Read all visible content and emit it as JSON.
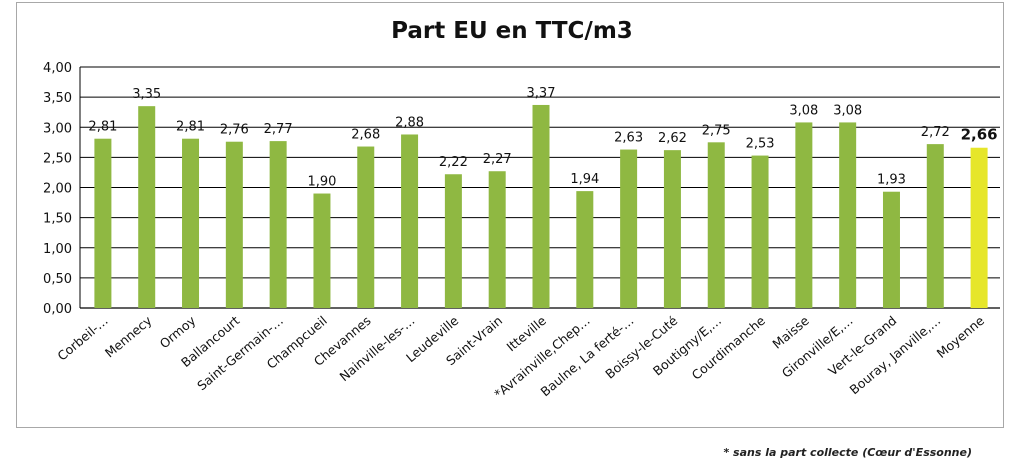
{
  "footnote": "* sans la part collecte (Cœur d'Essonne)",
  "chart_data": {
    "type": "bar",
    "title": "Part EU en TTC/m3",
    "xlabel": "",
    "ylabel": "",
    "ylim": [
      0,
      4
    ],
    "yticks": [
      "0,00",
      "0,50",
      "1,00",
      "1,50",
      "2,00",
      "2,50",
      "3,00",
      "3,50",
      "4,00"
    ],
    "grid": true,
    "legend": "none",
    "categories": [
      "Corbeil-…",
      "Mennecy",
      "Ormoy",
      "Ballancourt",
      "Saint-Germain-…",
      "Champcueil",
      "Chevannes",
      "Nainville-les-…",
      "Leudeville",
      "Saint-Vrain",
      "Itteville",
      "*Avrainville,Chep…",
      "Baulne, La ferté-…",
      "Boissy-le-Cuté",
      "Boutigny/E,…",
      "Courdimanche",
      "Maisse",
      "Gironville/E,…",
      "Vert-le-Grand",
      "Bouray, Janville,…",
      "Moyenne"
    ],
    "values": [
      2.81,
      3.35,
      2.81,
      2.76,
      2.77,
      1.9,
      2.68,
      2.88,
      2.22,
      2.27,
      3.37,
      1.94,
      2.63,
      2.62,
      2.75,
      2.53,
      3.08,
      3.08,
      1.93,
      2.72,
      2.66
    ],
    "labels": [
      "2,81",
      "3,35",
      "2,81",
      "2,76",
      "2,77",
      "1,90",
      "2,68",
      "2,88",
      "2,22",
      "2,27",
      "3,37",
      "1,94",
      "2,63",
      "2,62",
      "2,75",
      "2,53",
      "3,08",
      "3,08",
      "1,93",
      "2,72",
      "2,66"
    ],
    "colors": {
      "bar": "#8fb842",
      "bar_highlight": "#e6e62a",
      "grid": "#000000"
    }
  }
}
